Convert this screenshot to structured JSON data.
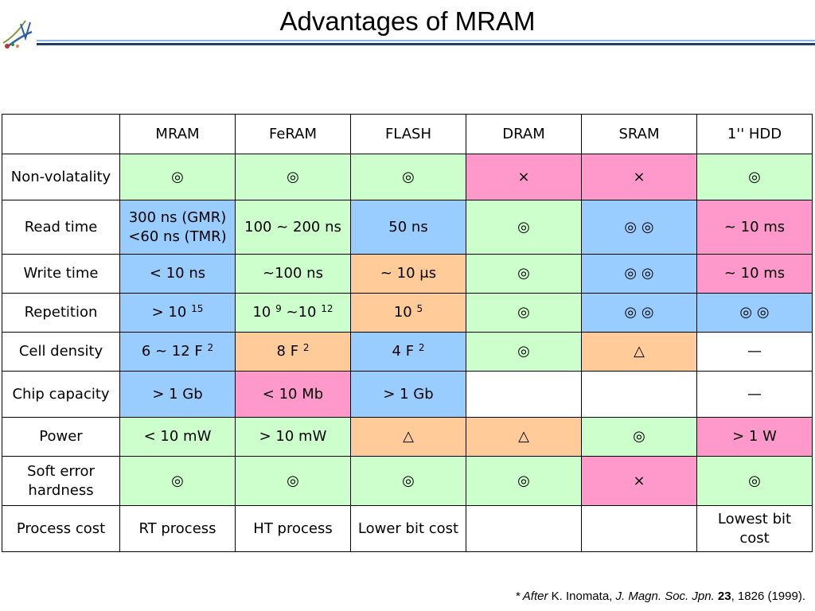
{
  "slide": {
    "title": "Advantages of MRAM"
  },
  "table": {
    "columns": [
      "",
      "MRAM",
      "FeRAM",
      "FLASH",
      "DRAM",
      "SRAM",
      "1'' HDD"
    ],
    "rows": {
      "nonvol": {
        "label": "Non-volatality",
        "cells": [
          "◎",
          "◎",
          "◎",
          "×",
          "×",
          "◎"
        ]
      },
      "read": {
        "label": "Read time",
        "mram_line1": "300 ns (GMR)",
        "mram_line2": "<60 ns (TMR)",
        "feram": "100 ~ 200 ns",
        "flash": "50 ns",
        "dram": "◎",
        "sram": "◎ ◎",
        "hdd": "~ 10 ms"
      },
      "write": {
        "label": "Write time",
        "cells": [
          "< 10 ns",
          "~100 ns",
          "~ 10 μs",
          "◎",
          "◎ ◎",
          "~ 10 ms"
        ]
      },
      "repetition": {
        "label": "Repetition",
        "mram_base": "> 10",
        "mram_exp": "15",
        "feram_base1": "10",
        "feram_exp1": "9",
        "feram_mid": "~10",
        "feram_exp2": "12",
        "flash_base": "10",
        "flash_exp": "5",
        "dram": "◎",
        "sram": "◎ ◎",
        "hdd": "◎ ◎"
      },
      "density": {
        "label": "Cell density",
        "mram_base": "6 ~ 12 F",
        "mram_exp": "2",
        "feram_base": "8 F",
        "feram_exp": "2",
        "flash_base": "4 F",
        "flash_exp": "2",
        "dram": "◎",
        "sram": "△",
        "hdd": "—"
      },
      "capacity": {
        "label": "Chip capacity",
        "cells": [
          "> 1 Gb",
          "< 10 Mb",
          "> 1 Gb",
          "",
          "",
          "—"
        ]
      },
      "power": {
        "label": "Power",
        "cells": [
          "< 10 mW",
          "> 10 mW",
          "△",
          "△",
          "◎",
          "> 1 W"
        ]
      },
      "softerror": {
        "label": "Soft error hardness",
        "cells": [
          "◎",
          "◎",
          "◎",
          "◎",
          "×",
          "◎"
        ]
      },
      "cost": {
        "label": "Process cost",
        "cells": [
          "RT process",
          "HT process",
          "Lower bit cost",
          "",
          "",
          "Lowest bit cost"
        ]
      }
    },
    "colors": {
      "green": "#ccffcc",
      "pink": "#ff99cc",
      "blue": "#99ccff",
      "orange": "#ffcc99"
    }
  },
  "footnote": {
    "prefix": "* ",
    "after": "After",
    "author": " K. Inomata, ",
    "journal": "J. Magn. Soc. Jpn.",
    "space": " ",
    "volume": "23",
    "rest": ", 1826 (1999)."
  }
}
